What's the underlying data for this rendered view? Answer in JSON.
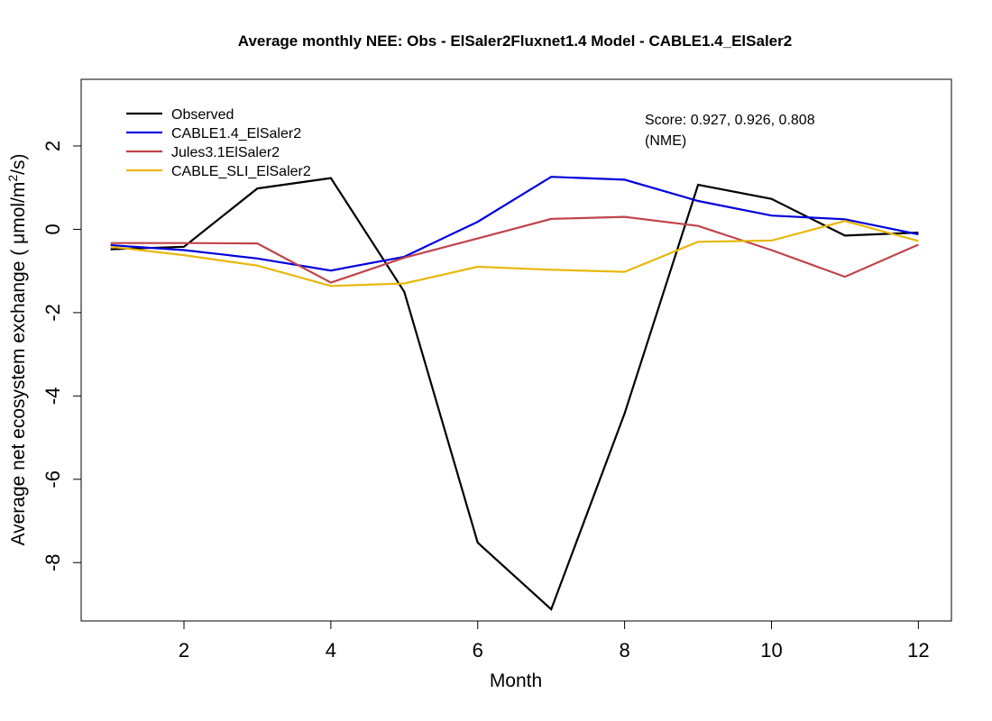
{
  "chart_data": {
    "type": "line",
    "title": "Average monthly NEE:   Obs - ElSaler2Fluxnet1.4   Model - CABLE1.4_ElSaler2",
    "xlabel": "Month",
    "ylabel_main": "Average net ecosystem exchange  ( ",
    "ylabel_unit_mu": "μ",
    "ylabel_unit_mol": "mol/m",
    "ylabel_unit_sup": "2",
    "ylabel_unit_end": "/s)",
    "xlim": [
      0.6,
      12.45
    ],
    "ylim": [
      -9.4,
      3.6
    ],
    "x_ticks": [
      2,
      4,
      6,
      8,
      10,
      12
    ],
    "x_tick_labels": [
      "2",
      "4",
      "6",
      "8",
      "10",
      "12"
    ],
    "y_ticks": [
      2,
      0,
      -2,
      -4,
      -6,
      -8
    ],
    "y_tick_labels": [
      "2",
      "0",
      "-2",
      "-4",
      "-6",
      "-8"
    ],
    "x": [
      1,
      2,
      3,
      4,
      5,
      6,
      7,
      8,
      9,
      10,
      11,
      12
    ],
    "series": [
      {
        "name": "Observed",
        "color": "#000000",
        "values": [
          -0.48,
          -0.42,
          0.98,
          1.23,
          -1.5,
          -7.52,
          -9.12,
          -4.42,
          1.07,
          0.73,
          -0.15,
          -0.08
        ]
      },
      {
        "name": "CABLE1.4_ElSaler2",
        "color": "#0000dd",
        "values": [
          -0.38,
          -0.5,
          -0.7,
          -0.99,
          -0.66,
          0.18,
          1.26,
          1.19,
          0.68,
          0.33,
          0.24,
          -0.12
        ]
      },
      {
        "name": "Jules3.1ElSaler2",
        "color": "#c0444a",
        "values": [
          -0.33,
          -0.33,
          -0.34,
          -1.28,
          -0.68,
          -0.22,
          0.25,
          0.3,
          0.08,
          -0.5,
          -1.14,
          -0.37
        ]
      },
      {
        "name": "CABLE_SLI_ElSaler2",
        "color": "#e8b80c",
        "values": [
          -0.42,
          -0.62,
          -0.87,
          -1.36,
          -1.3,
          -0.9,
          -0.97,
          -1.02,
          -0.3,
          -0.27,
          0.2,
          -0.28
        ]
      }
    ],
    "annotation_line1": "Score: 0.927, 0.926, 0.808",
    "annotation_line2": "(NME)",
    "legend_position": "top-left"
  }
}
